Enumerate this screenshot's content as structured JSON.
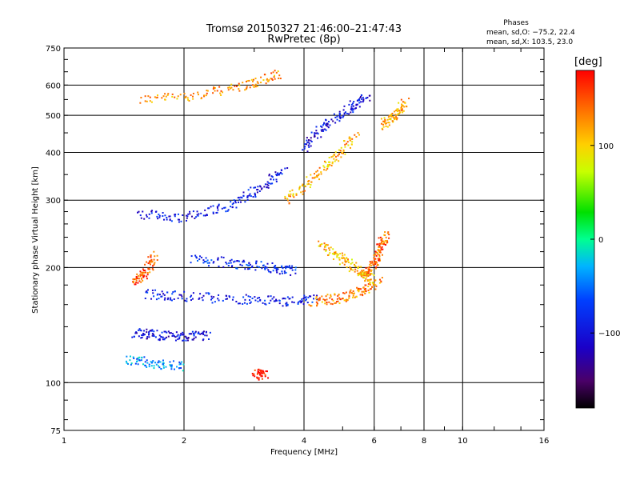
{
  "chart_data": {
    "type": "scatter",
    "title": "Tromsø 20150327 21:46:00–21:47:43",
    "subtitle": "RwPretec (8p)",
    "xlabel": "Frequency [MHz]",
    "ylabel": "Stationary phase Virtual Height [km]",
    "x_scale": "log",
    "y_scale": "log",
    "xlim": [
      1,
      16
    ],
    "ylim": [
      75,
      750
    ],
    "x_ticks": [
      1,
      2,
      4,
      6,
      8,
      10,
      16
    ],
    "x_tick_labels": [
      "1",
      "2",
      "4",
      "6",
      "8",
      "10",
      "16"
    ],
    "y_ticks": [
      75,
      100,
      200,
      300,
      400,
      500,
      600,
      750
    ],
    "y_tick_labels": [
      "75",
      "100",
      "200",
      "300",
      "400",
      "500",
      "600",
      "750"
    ],
    "grid": true,
    "stats": {
      "heading": "Phases",
      "o_line": "mean, sd,O: −75.2, 22.4",
      "x_line": "mean, sd,X: 103.5, 23.0"
    },
    "colorbar": {
      "label": "[deg]",
      "range": [
        -180,
        180
      ],
      "ticks": [
        -100,
        0,
        100
      ],
      "tick_labels": [
        "−100",
        "0",
        "100"
      ],
      "colormap": "rainbow"
    },
    "traces": [
      {
        "x": [
          1.55,
          2.2,
          2.9,
          3.5
        ],
        "y": [
          550,
          565,
          600,
          640
        ],
        "phase": 125
      },
      {
        "x": [
          1.55,
          2.0,
          2.6,
          3.1,
          3.6
        ],
        "y": [
          275,
          270,
          290,
          320,
          360
        ],
        "phase": -95
      },
      {
        "x": [
          3.6,
          4.2,
          4.8,
          5.4
        ],
        "y": [
          300,
          340,
          390,
          440
        ],
        "phase": 115
      },
      {
        "x": [
          4.0,
          4.5,
          5.2,
          5.8
        ],
        "y": [
          410,
          470,
          520,
          560
        ],
        "phase": -100
      },
      {
        "x": [
          1.6,
          2.0,
          2.8,
          3.6,
          4.3
        ],
        "y": [
          170,
          168,
          165,
          163,
          165
        ],
        "phase": -90
      },
      {
        "x": [
          4.2,
          4.9,
          5.5,
          6.2
        ],
        "y": [
          163,
          166,
          172,
          185
        ],
        "phase": 130
      },
      {
        "x": [
          5.6,
          6.0,
          6.2,
          6.4
        ],
        "y": [
          190,
          205,
          225,
          245
        ],
        "phase": 145
      },
      {
        "x": [
          1.5,
          1.7,
          2.0,
          2.3
        ],
        "y": [
          135,
          133,
          132,
          133
        ],
        "phase": -100
      },
      {
        "x": [
          1.45,
          1.7,
          2.0
        ],
        "y": [
          115,
          112,
          110
        ],
        "phase": -45
      },
      {
        "x": [
          2.1,
          2.7,
          3.3,
          3.8
        ],
        "y": [
          210,
          205,
          200,
          195
        ],
        "phase": -85
      },
      {
        "x": [
          4.4,
          5.0,
          5.5,
          5.9
        ],
        "y": [
          230,
          210,
          195,
          185
        ],
        "phase": 110
      },
      {
        "x": [
          1.5,
          1.6,
          1.7
        ],
        "y": [
          180,
          195,
          215
        ],
        "phase": 150
      },
      {
        "x": [
          6.3,
          6.8,
          7.2
        ],
        "y": [
          470,
          500,
          540
        ],
        "phase": 115
      },
      {
        "x": [
          3.0,
          3.2
        ],
        "y": [
          106,
          104
        ],
        "phase": 175
      }
    ]
  }
}
